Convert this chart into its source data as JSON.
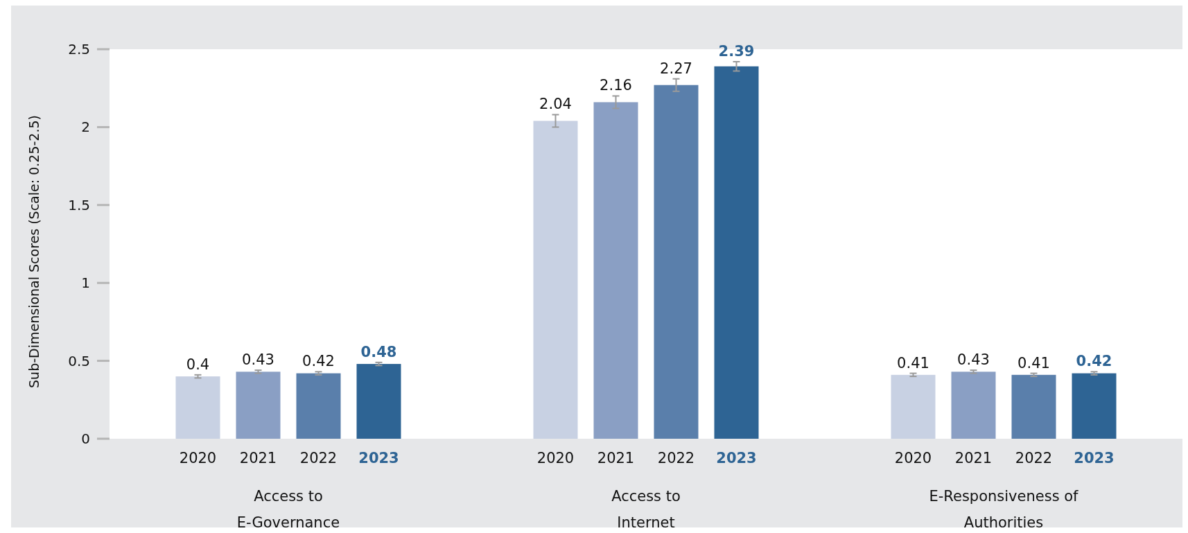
{
  "chart_data": {
    "type": "bar",
    "ylabel": "Sub-Dimensional Scores (Scale: 0.25-2.5)",
    "categories": [
      "Access to\nE-Governance",
      "Access to\nInternet",
      "E-Responsiveness of\nAuthorities"
    ],
    "series": [
      {
        "name": "2020",
        "color": "#c8d1e3",
        "values": [
          0.4,
          2.04,
          0.41
        ],
        "errors": [
          0.01,
          0.04,
          0.01
        ]
      },
      {
        "name": "2021",
        "color": "#8a9fc4",
        "values": [
          0.43,
          2.16,
          0.43
        ],
        "errors": [
          0.01,
          0.04,
          0.01
        ]
      },
      {
        "name": "2022",
        "color": "#5a7fab",
        "values": [
          0.42,
          2.27,
          0.41
        ],
        "errors": [
          0.01,
          0.04,
          0.01
        ]
      },
      {
        "name": "2023",
        "color": "#2e6494",
        "values": [
          0.48,
          2.39,
          0.42
        ],
        "errors": [
          0.01,
          0.03,
          0.01
        ]
      }
    ],
    "ylim": [
      0,
      2.5
    ],
    "yticks": [
      0,
      0.5,
      1,
      1.5,
      2,
      2.5
    ],
    "data_labels": true
  }
}
